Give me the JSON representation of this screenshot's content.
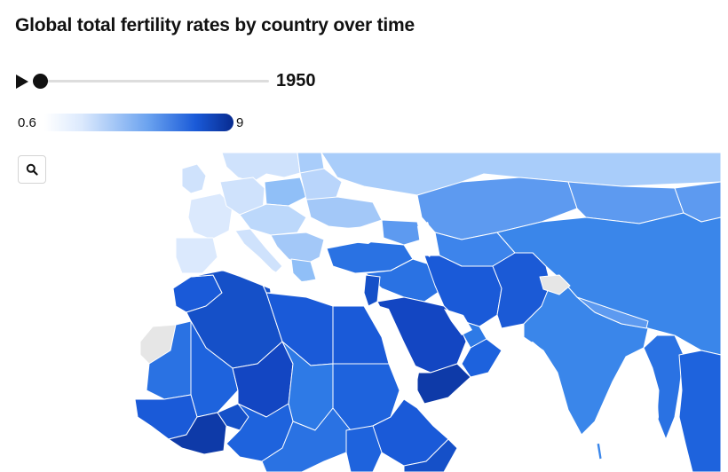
{
  "title": "Global total fertility rates by country over time",
  "timeline": {
    "year": "1950",
    "play_icon": "play-icon",
    "position": 0
  },
  "legend": {
    "min_label": "0.6",
    "max_label": "9",
    "color_low": "#ffffff",
    "color_high": "#082b8f"
  },
  "zoom": {
    "icon": "search-icon"
  },
  "map": {
    "sea_color": "#ffffff",
    "border_color": "#ffffff",
    "no_data_color": "#e6e6e6"
  }
}
